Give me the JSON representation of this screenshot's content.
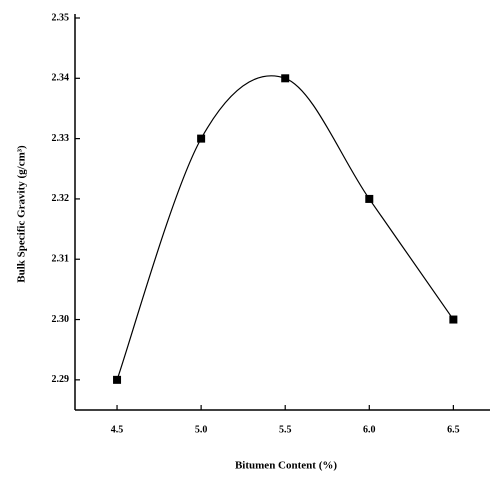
{
  "chart_data": {
    "type": "scatter",
    "x_label": "Bitumen Content (%)",
    "y_label": "Bulk Specific Gravity (g/cm³)",
    "x": [
      4.5,
      5.0,
      5.5,
      6.0,
      6.5
    ],
    "values": [
      2.29,
      2.33,
      2.34,
      2.32,
      2.3
    ],
    "color": "#000000",
    "curve": "smooth",
    "xlim": [
      4.25,
      6.7
    ],
    "ylim": [
      2.285,
      2.35
    ],
    "xticks": [
      4.5,
      {
        "value": 5.0,
        "label": "5.0"
      },
      5.5,
      {
        "value": 6.0,
        "label": "6.0"
      },
      6.5
    ],
    "yticks": [
      2.29,
      {
        "value": 2.3,
        "label": "2.30"
      },
      2.31,
      2.32,
      2.33,
      2.34,
      2.35
    ]
  }
}
